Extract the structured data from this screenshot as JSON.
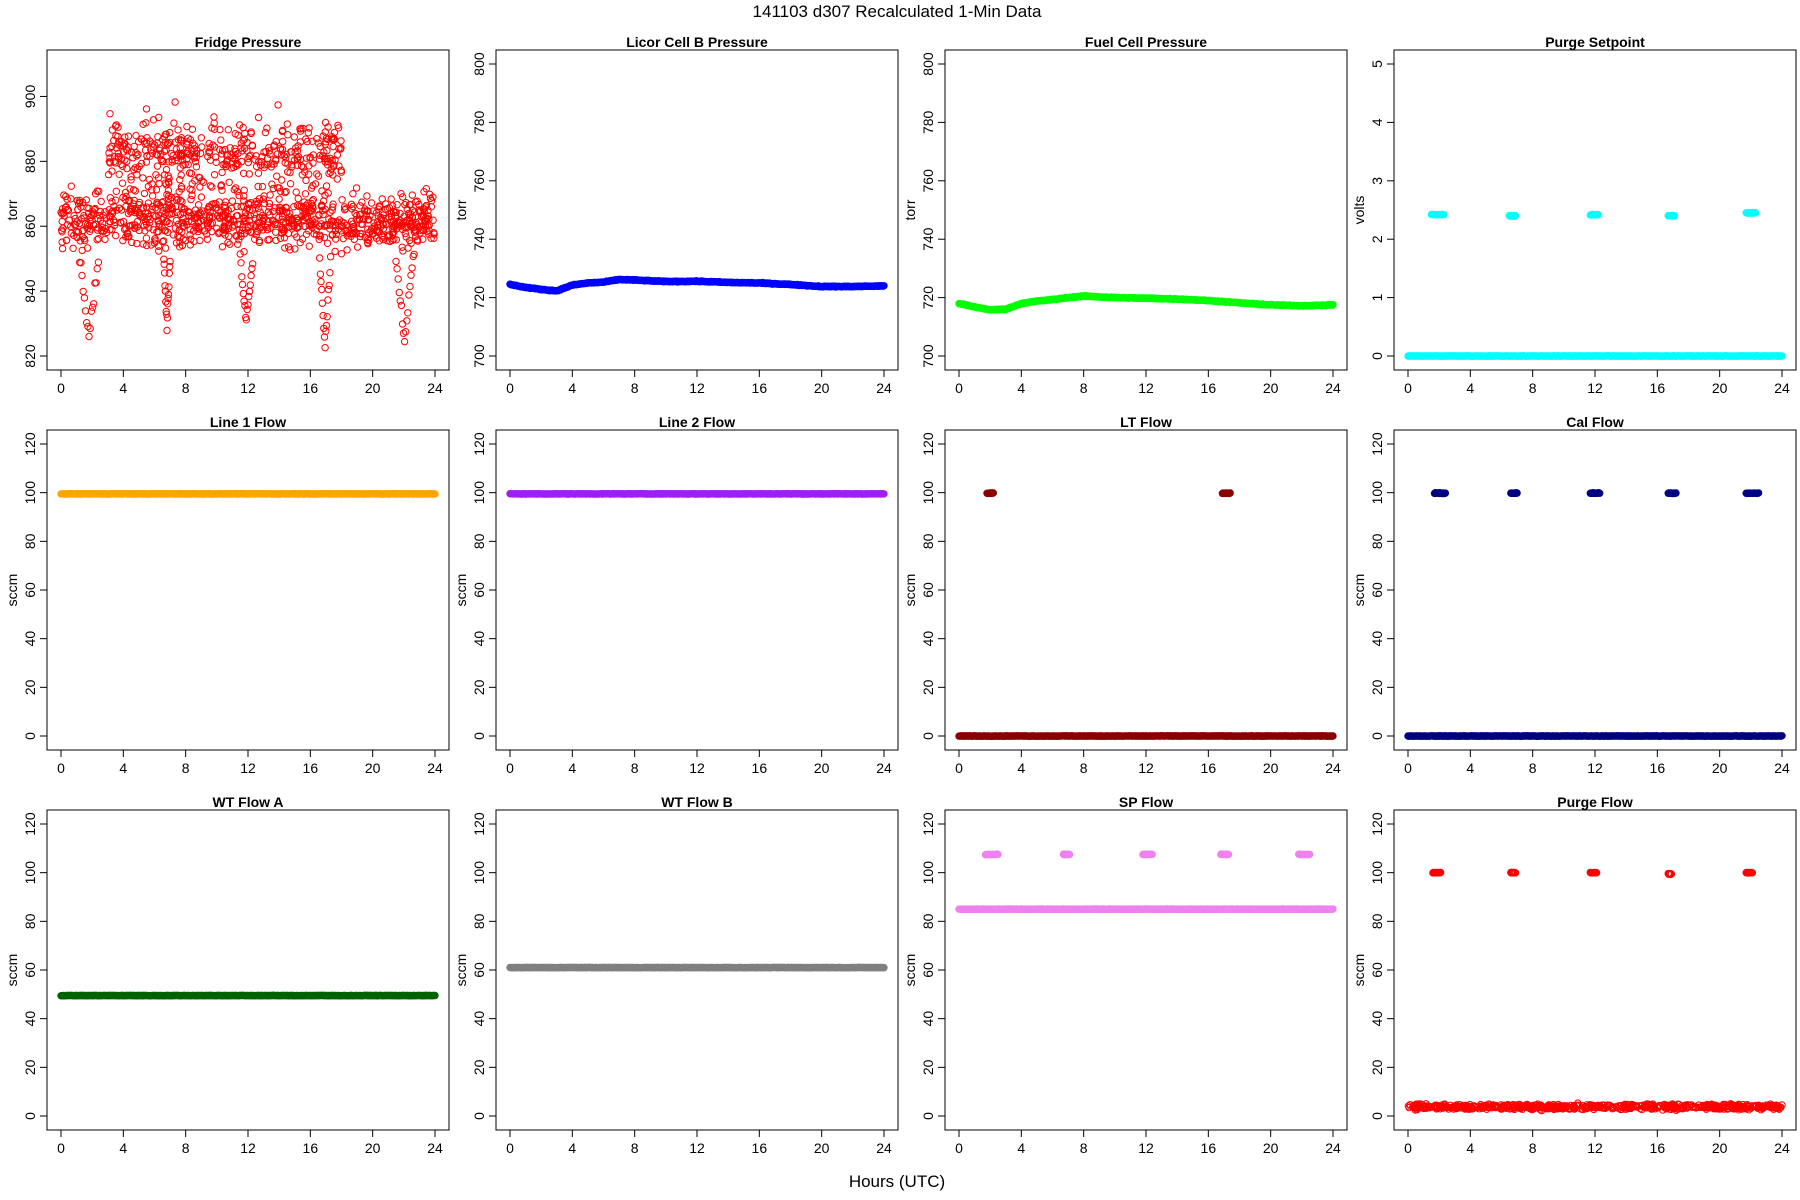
{
  "figure": {
    "title": "141103   d307   Recalculated 1-Min Data",
    "xlabel": "Hours (UTC)"
  },
  "chart_data": [
    {
      "type": "scatter",
      "title": "Fridge Pressure",
      "ylabel": "torr",
      "xlim": [
        0,
        24
      ],
      "ylim": [
        820,
        910
      ],
      "xticks": [
        0,
        4,
        8,
        12,
        16,
        20,
        24
      ],
      "yticks": [
        820,
        840,
        860,
        880,
        900
      ],
      "color": "#ff0000",
      "marker": "open-circle",
      "series": [
        {
          "kind": "noise",
          "from": 0,
          "to": 24,
          "value": 862,
          "spread": 9,
          "density": 900
        },
        {
          "kind": "noise",
          "from": 3,
          "to": 18,
          "value": 882,
          "spread": 12,
          "density": 420
        },
        {
          "kind": "dip",
          "from": 1.2,
          "to": 2.4,
          "min": 826
        },
        {
          "kind": "dip",
          "from": 6.6,
          "to": 7.0,
          "min": 829
        },
        {
          "kind": "dip",
          "from": 11.5,
          "to": 12.3,
          "min": 831
        },
        {
          "kind": "dip",
          "from": 16.6,
          "to": 17.3,
          "min": 823
        },
        {
          "kind": "dip",
          "from": 21.5,
          "to": 22.6,
          "min": 825
        }
      ]
    },
    {
      "type": "scatter",
      "title": "Licor Cell B Pressure",
      "ylabel": "torr",
      "xlim": [
        0,
        24
      ],
      "ylim": [
        700,
        800
      ],
      "xticks": [
        0,
        4,
        8,
        12,
        16,
        20,
        24
      ],
      "yticks": [
        700,
        720,
        740,
        760,
        780,
        800
      ],
      "color": "#0000ff",
      "marker": "filled-circle",
      "series": [
        {
          "kind": "curve",
          "x": [
            0,
            1,
            2,
            3,
            4,
            5,
            6,
            7,
            8,
            10,
            12,
            14,
            16,
            18,
            20,
            22,
            24
          ],
          "y": [
            724.5,
            723.5,
            722.8,
            722.3,
            724.3,
            725.0,
            725.3,
            726.2,
            726.0,
            725.5,
            725.6,
            725.2,
            725.0,
            724.5,
            723.8,
            723.8,
            724.0
          ]
        }
      ]
    },
    {
      "type": "scatter",
      "title": "Fuel Cell Pressure",
      "ylabel": "torr",
      "xlim": [
        0,
        24
      ],
      "ylim": [
        700,
        800
      ],
      "xticks": [
        0,
        4,
        8,
        12,
        16,
        20,
        24
      ],
      "yticks": [
        700,
        720,
        740,
        760,
        780,
        800
      ],
      "color": "#00ff00",
      "marker": "filled-circle",
      "series": [
        {
          "kind": "curve",
          "x": [
            0,
            1,
            2,
            3,
            4,
            5,
            6,
            7,
            8,
            10,
            12,
            14,
            16,
            18,
            20,
            22,
            24
          ],
          "y": [
            718.0,
            716.8,
            715.8,
            716.0,
            718.0,
            718.8,
            719.3,
            720.0,
            720.5,
            720.0,
            719.8,
            719.5,
            719.0,
            718.2,
            717.5,
            717.2,
            717.5
          ]
        }
      ]
    },
    {
      "type": "scatter",
      "title": "Purge Setpoint",
      "ylabel": "volts",
      "xlim": [
        0,
        24
      ],
      "ylim": [
        0,
        5
      ],
      "xticks": [
        0,
        4,
        8,
        12,
        16,
        20,
        24
      ],
      "yticks": [
        0,
        1,
        2,
        3,
        4,
        5
      ],
      "color": "#00ffff",
      "marker": "filled-circle",
      "series": [
        {
          "kind": "line",
          "from": 0,
          "to": 24,
          "value": 0
        },
        {
          "kind": "cluster",
          "from": 1.5,
          "to": 2.3,
          "value": 2.42
        },
        {
          "kind": "cluster",
          "from": 6.5,
          "to": 6.9,
          "value": 2.4
        },
        {
          "kind": "cluster",
          "from": 11.7,
          "to": 12.2,
          "value": 2.42
        },
        {
          "kind": "cluster",
          "from": 16.7,
          "to": 17.1,
          "value": 2.4
        },
        {
          "kind": "cluster",
          "from": 21.7,
          "to": 22.3,
          "value": 2.45
        }
      ]
    },
    {
      "type": "scatter",
      "title": "Line 1 Flow",
      "ylabel": "sccm",
      "xlim": [
        0,
        24
      ],
      "ylim": [
        0,
        120
      ],
      "xticks": [
        0,
        4,
        8,
        12,
        16,
        20,
        24
      ],
      "yticks": [
        0,
        20,
        40,
        60,
        80,
        100,
        120
      ],
      "color": "#ffa500",
      "marker": "filled-circle",
      "series": [
        {
          "kind": "line",
          "from": 0,
          "to": 24,
          "value": 99.5
        }
      ]
    },
    {
      "type": "scatter",
      "title": "Line 2 Flow",
      "ylabel": "sccm",
      "xlim": [
        0,
        24
      ],
      "ylim": [
        0,
        120
      ],
      "xticks": [
        0,
        4,
        8,
        12,
        16,
        20,
        24
      ],
      "yticks": [
        0,
        20,
        40,
        60,
        80,
        100,
        120
      ],
      "color": "#a020f0",
      "marker": "filled-circle",
      "series": [
        {
          "kind": "line",
          "from": 0,
          "to": 24,
          "value": 99.5
        }
      ]
    },
    {
      "type": "scatter",
      "title": "LT Flow",
      "ylabel": "sccm",
      "xlim": [
        0,
        24
      ],
      "ylim": [
        0,
        120
      ],
      "xticks": [
        0,
        4,
        8,
        12,
        16,
        20,
        24
      ],
      "yticks": [
        0,
        20,
        40,
        60,
        80,
        100,
        120
      ],
      "color": "#8b0000",
      "marker": "filled-circle",
      "series": [
        {
          "kind": "line",
          "from": 0,
          "to": 24,
          "value": 0
        },
        {
          "kind": "cluster",
          "from": 1.8,
          "to": 2.2,
          "value": 99.8
        },
        {
          "kind": "cluster",
          "from": 16.9,
          "to": 17.4,
          "value": 99.8
        }
      ]
    },
    {
      "type": "scatter",
      "title": "Cal Flow",
      "ylabel": "sccm",
      "xlim": [
        0,
        24
      ],
      "ylim": [
        0,
        120
      ],
      "xticks": [
        0,
        4,
        8,
        12,
        16,
        20,
        24
      ],
      "yticks": [
        0,
        20,
        40,
        60,
        80,
        100,
        120
      ],
      "color": "#000080",
      "marker": "filled-circle",
      "series": [
        {
          "kind": "line",
          "from": 0,
          "to": 24,
          "value": 0
        },
        {
          "kind": "cluster",
          "from": 1.7,
          "to": 2.4,
          "value": 99.8
        },
        {
          "kind": "cluster",
          "from": 6.6,
          "to": 7.0,
          "value": 99.8
        },
        {
          "kind": "cluster",
          "from": 11.7,
          "to": 12.3,
          "value": 99.8
        },
        {
          "kind": "cluster",
          "from": 16.7,
          "to": 17.2,
          "value": 99.8
        },
        {
          "kind": "cluster",
          "from": 21.7,
          "to": 22.5,
          "value": 99.8
        }
      ]
    },
    {
      "type": "scatter",
      "title": "WT Flow A",
      "ylabel": "sccm",
      "xlim": [
        0,
        24
      ],
      "ylim": [
        0,
        120
      ],
      "xticks": [
        0,
        4,
        8,
        12,
        16,
        20,
        24
      ],
      "yticks": [
        0,
        20,
        40,
        60,
        80,
        100,
        120
      ],
      "color": "#006400",
      "marker": "filled-circle",
      "series": [
        {
          "kind": "line",
          "from": 0,
          "to": 24,
          "value": 49.5
        }
      ]
    },
    {
      "type": "scatter",
      "title": "WT Flow B",
      "ylabel": "sccm",
      "xlim": [
        0,
        24
      ],
      "ylim": [
        0,
        120
      ],
      "xticks": [
        0,
        4,
        8,
        12,
        16,
        20,
        24
      ],
      "yticks": [
        0,
        20,
        40,
        60,
        80,
        100,
        120
      ],
      "color": "#808080",
      "marker": "filled-circle",
      "series": [
        {
          "kind": "line",
          "from": 0,
          "to": 24,
          "value": 61
        }
      ]
    },
    {
      "type": "scatter",
      "title": "SP Flow",
      "ylabel": "sccm",
      "xlim": [
        0,
        24
      ],
      "ylim": [
        0,
        120
      ],
      "xticks": [
        0,
        4,
        8,
        12,
        16,
        20,
        24
      ],
      "yticks": [
        0,
        20,
        40,
        60,
        80,
        100,
        120
      ],
      "color": "#ee82ee",
      "marker": "filled-circle",
      "series": [
        {
          "kind": "line",
          "from": 0,
          "to": 24,
          "value": 85
        },
        {
          "kind": "cluster",
          "from": 1.7,
          "to": 2.5,
          "value": 107.5
        },
        {
          "kind": "cluster",
          "from": 6.7,
          "to": 7.1,
          "value": 107.5
        },
        {
          "kind": "cluster",
          "from": 11.8,
          "to": 12.4,
          "value": 107.5
        },
        {
          "kind": "cluster",
          "from": 16.8,
          "to": 17.3,
          "value": 107.5
        },
        {
          "kind": "cluster",
          "from": 21.8,
          "to": 22.5,
          "value": 107.5
        }
      ]
    },
    {
      "type": "scatter",
      "title": "Purge Flow",
      "ylabel": "sccm",
      "xlim": [
        0,
        24
      ],
      "ylim": [
        0,
        120
      ],
      "xticks": [
        0,
        4,
        8,
        12,
        16,
        20,
        24
      ],
      "yticks": [
        0,
        20,
        40,
        60,
        80,
        100,
        120
      ],
      "color": "#ff0000",
      "marker": "open-circle",
      "series": [
        {
          "kind": "noise",
          "from": 0,
          "to": 24,
          "value": 3.8,
          "spread": 1.2,
          "density": 700
        },
        {
          "kind": "cluster",
          "from": 1.6,
          "to": 2.1,
          "value": 100
        },
        {
          "kind": "cluster",
          "from": 6.6,
          "to": 6.9,
          "value": 100
        },
        {
          "kind": "cluster",
          "from": 11.7,
          "to": 12.1,
          "value": 100
        },
        {
          "kind": "cluster",
          "from": 16.7,
          "to": 16.9,
          "value": 99.5
        },
        {
          "kind": "cluster",
          "from": 21.7,
          "to": 22.1,
          "value": 100
        }
      ]
    }
  ]
}
